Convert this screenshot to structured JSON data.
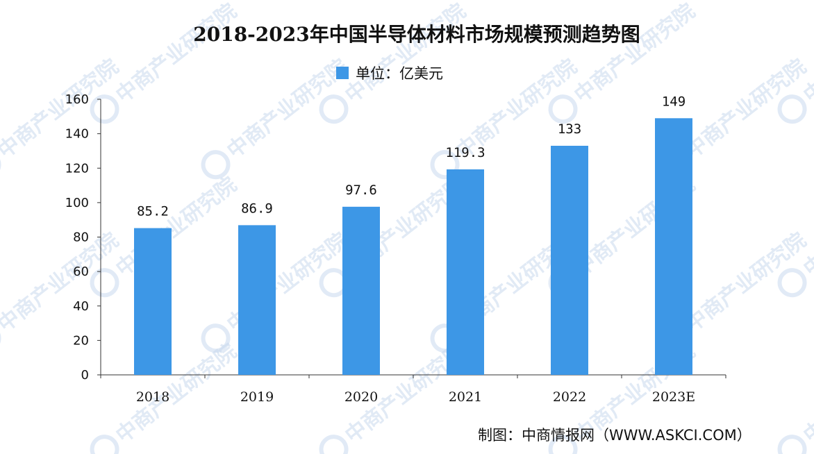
{
  "chart_data": {
    "type": "bar",
    "title": "2018-2023年中国半导体材料市场规模预测趋势图",
    "legend": {
      "label": "单位：亿美元",
      "position": "top-center"
    },
    "categories": [
      "2018",
      "2019",
      "2020",
      "2021",
      "2022",
      "2023E"
    ],
    "series": [
      {
        "values": [
          85.2,
          86.9,
          97.6,
          119.3,
          133,
          149
        ],
        "data_labels": [
          "85.2",
          "86.9",
          "97.6",
          "119.3",
          "133",
          "149"
        ]
      }
    ],
    "ylim": [
      0,
      160
    ],
    "yticks": [
      "0",
      "20",
      "40",
      "60",
      "80",
      "100",
      "120",
      "140",
      "160"
    ],
    "xlabel": "",
    "ylabel": "",
    "grid": false,
    "colors": {
      "bar": "#3D97E6"
    }
  },
  "source": "制图：中商情报网（WWW.ASKCI.COM）",
  "watermark": {
    "text": "中商产业研究院"
  }
}
